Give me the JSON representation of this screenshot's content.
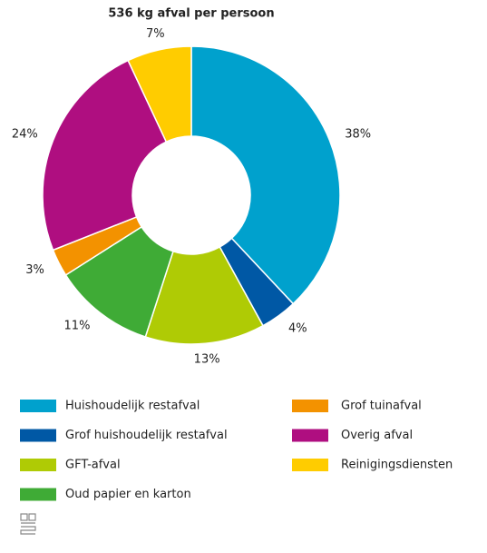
{
  "chart_data": {
    "type": "donut",
    "title": "536 kg afval per persoon",
    "categories": [
      "Huishoudelijk restafval",
      "Grof huishoudelijk restafval",
      "GFT-afval",
      "Oud papier en karton",
      "Grof tuinafval",
      "Overig afval",
      "Reinigingsdiensten"
    ],
    "values": [
      38,
      4,
      13,
      11,
      3,
      24,
      7
    ],
    "value_labels": [
      "38%",
      "4%",
      "13%",
      "11%",
      "3%",
      "24%",
      "7%"
    ],
    "colors": [
      "#00a1cd",
      "#0058a5",
      "#afcb05",
      "#3fab36",
      "#f39200",
      "#af0e80",
      "#ffcc00"
    ]
  }
}
